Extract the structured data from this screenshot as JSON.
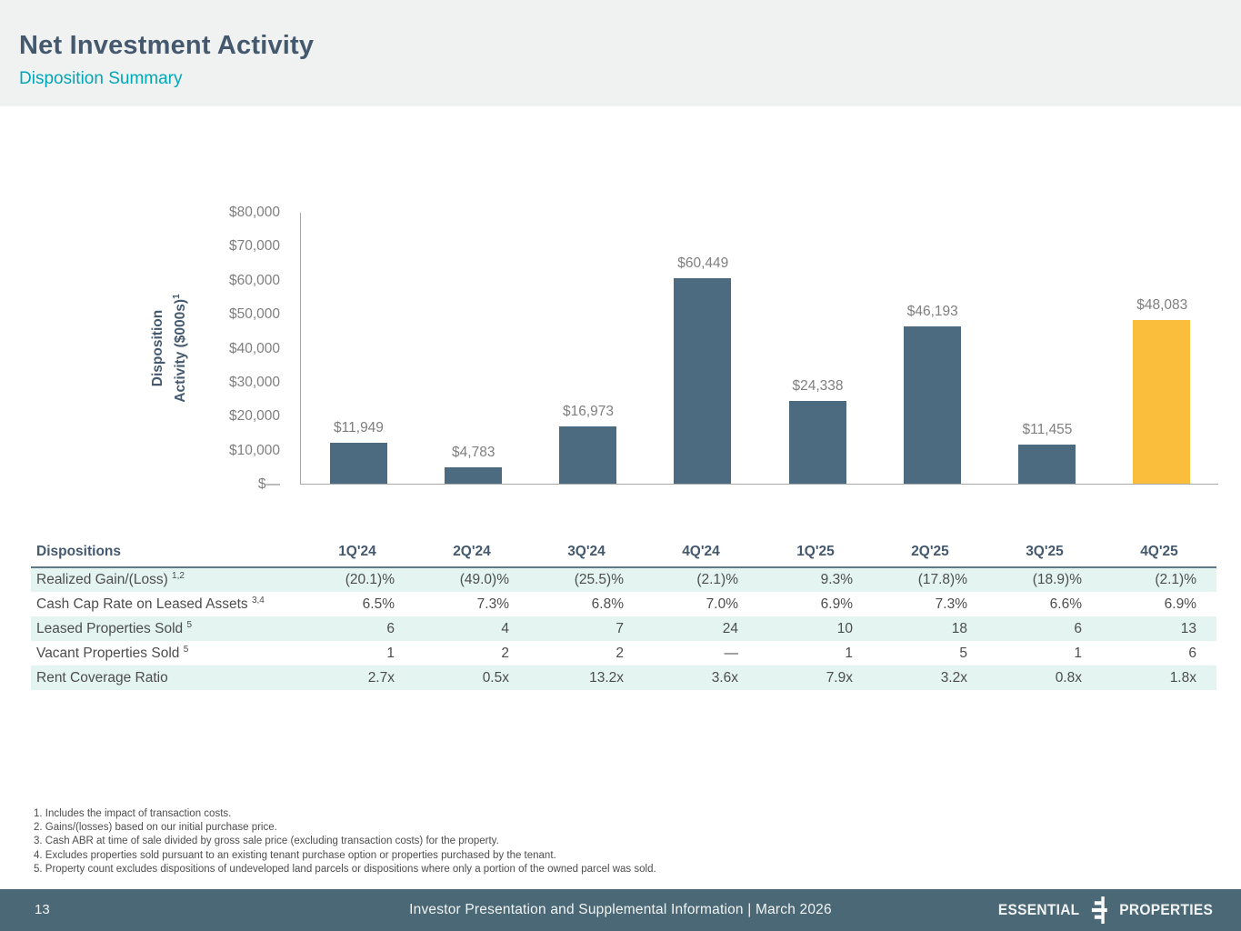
{
  "header": {
    "title": "Net Investment Activity",
    "subtitle": "Disposition Summary"
  },
  "chart_data": {
    "type": "bar",
    "categories": [
      "1Q'24",
      "2Q'24",
      "3Q'24",
      "4Q'24",
      "1Q'25",
      "2Q'25",
      "3Q'25",
      "4Q'25"
    ],
    "values": [
      11949,
      4783,
      16973,
      60449,
      24338,
      46193,
      11455,
      48083
    ],
    "value_labels": [
      "$11,949",
      "$4,783",
      "$16,973",
      "$60,449",
      "$24,338",
      "$46,193",
      "$11,455",
      "$48,083"
    ],
    "title": "",
    "xlabel": "",
    "ylabel_line1": "Disposition",
    "ylabel_line2": "Activity ($000s)",
    "ylabel_sup": "1",
    "yticks": [
      "$80,000",
      "$70,000",
      "$60,000",
      "$50,000",
      "$40,000",
      "$30,000",
      "$20,000",
      "$10,000",
      "$—"
    ],
    "ylim": [
      0,
      80000
    ],
    "grid": "off",
    "legend": "none",
    "bar_color": "#4c6b80",
    "highlight_color": "#fbbd3c",
    "highlight_index": 7
  },
  "table": {
    "first_header": "Dispositions",
    "columns": [
      "1Q'24",
      "2Q'24",
      "3Q'24",
      "4Q'24",
      "1Q'25",
      "2Q'25",
      "3Q'25",
      "4Q'25"
    ],
    "rows": [
      {
        "label": "Realized Gain/(Loss)",
        "sup": "1,2",
        "values": [
          "(20.1)%",
          "(49.0)%",
          "(25.5)%",
          "(2.1)%",
          "9.3%",
          "(17.8)%",
          "(18.9)%",
          "(2.1)%"
        ]
      },
      {
        "label": "Cash Cap Rate on Leased Assets",
        "sup": "3,4",
        "values": [
          "6.5%",
          "7.3%",
          "6.8%",
          "7.0%",
          "6.9%",
          "7.3%",
          "6.6%",
          "6.9%"
        ]
      },
      {
        "label": "Leased Properties Sold",
        "sup": "5",
        "values": [
          "6",
          "4",
          "7",
          "24",
          "10",
          "18",
          "6",
          "13"
        ]
      },
      {
        "label": "Vacant Properties Sold",
        "sup": "5",
        "values": [
          "1",
          "2",
          "2",
          "—",
          "1",
          "5",
          "1",
          "6"
        ]
      },
      {
        "label": "Rent Coverage Ratio",
        "sup": "",
        "values": [
          "2.7x",
          "0.5x",
          "13.2x",
          "3.6x",
          "7.9x",
          "3.2x",
          "0.8x",
          "1.8x"
        ]
      }
    ]
  },
  "footnotes": [
    "1. Includes the impact of transaction costs.",
    "2. Gains/(losses) based on our initial purchase price.",
    "3. Cash ABR at time of sale divided by gross sale price (excluding transaction costs) for the property.",
    "4. Excludes properties sold pursuant to an existing tenant purchase option or properties purchased by the tenant.",
    "5. Property count excludes dispositions of undeveloped land parcels or dispositions where only a portion of the owned parcel was sold."
  ],
  "footer": {
    "page": "13",
    "center": "Investor Presentation and Supplemental Information |  March 2026",
    "logo_left": "ESSENTIAL",
    "logo_right": "PROPERTIES"
  }
}
